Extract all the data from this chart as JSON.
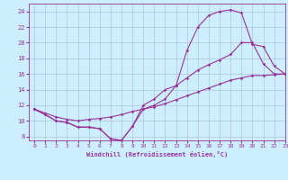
{
  "xlabel": "Windchill (Refroidissement éolien,°C)",
  "bg_color": "#cceeff",
  "grid_color": "#aabbcc",
  "line_color": "#993399",
  "x_hours": [
    0,
    1,
    2,
    3,
    4,
    5,
    6,
    7,
    8,
    9,
    10,
    11,
    12,
    13,
    14,
    15,
    16,
    17,
    18,
    19,
    20,
    21,
    22,
    23
  ],
  "series1": [
    11.5,
    10.8,
    10.0,
    9.8,
    9.2,
    9.2,
    9.0,
    7.7,
    7.5,
    9.3,
    12.0,
    12.8,
    14.0,
    14.5,
    19.0,
    22.0,
    23.5,
    24.0,
    24.2,
    23.8,
    19.8,
    19.5,
    17.0,
    16.0
  ],
  "series2": [
    11.5,
    10.8,
    10.0,
    9.8,
    9.2,
    9.2,
    9.0,
    7.7,
    7.5,
    9.3,
    11.5,
    12.0,
    12.8,
    14.5,
    15.5,
    16.5,
    17.2,
    17.8,
    18.5,
    20.0,
    20.0,
    17.3,
    16.0,
    16.0
  ],
  "series3": [
    11.5,
    11.0,
    10.5,
    10.2,
    10.0,
    10.2,
    10.3,
    10.5,
    10.8,
    11.2,
    11.5,
    11.8,
    12.2,
    12.7,
    13.2,
    13.7,
    14.2,
    14.7,
    15.2,
    15.5,
    15.8,
    15.8,
    15.9,
    16.0
  ],
  "ylim": [
    7.5,
    25
  ],
  "xlim": [
    -0.5,
    23
  ],
  "yticks": [
    8,
    10,
    12,
    14,
    16,
    18,
    20,
    22,
    24
  ],
  "xticks": [
    0,
    1,
    2,
    3,
    4,
    5,
    6,
    7,
    8,
    9,
    10,
    11,
    12,
    13,
    14,
    15,
    16,
    17,
    18,
    19,
    20,
    21,
    22,
    23
  ]
}
